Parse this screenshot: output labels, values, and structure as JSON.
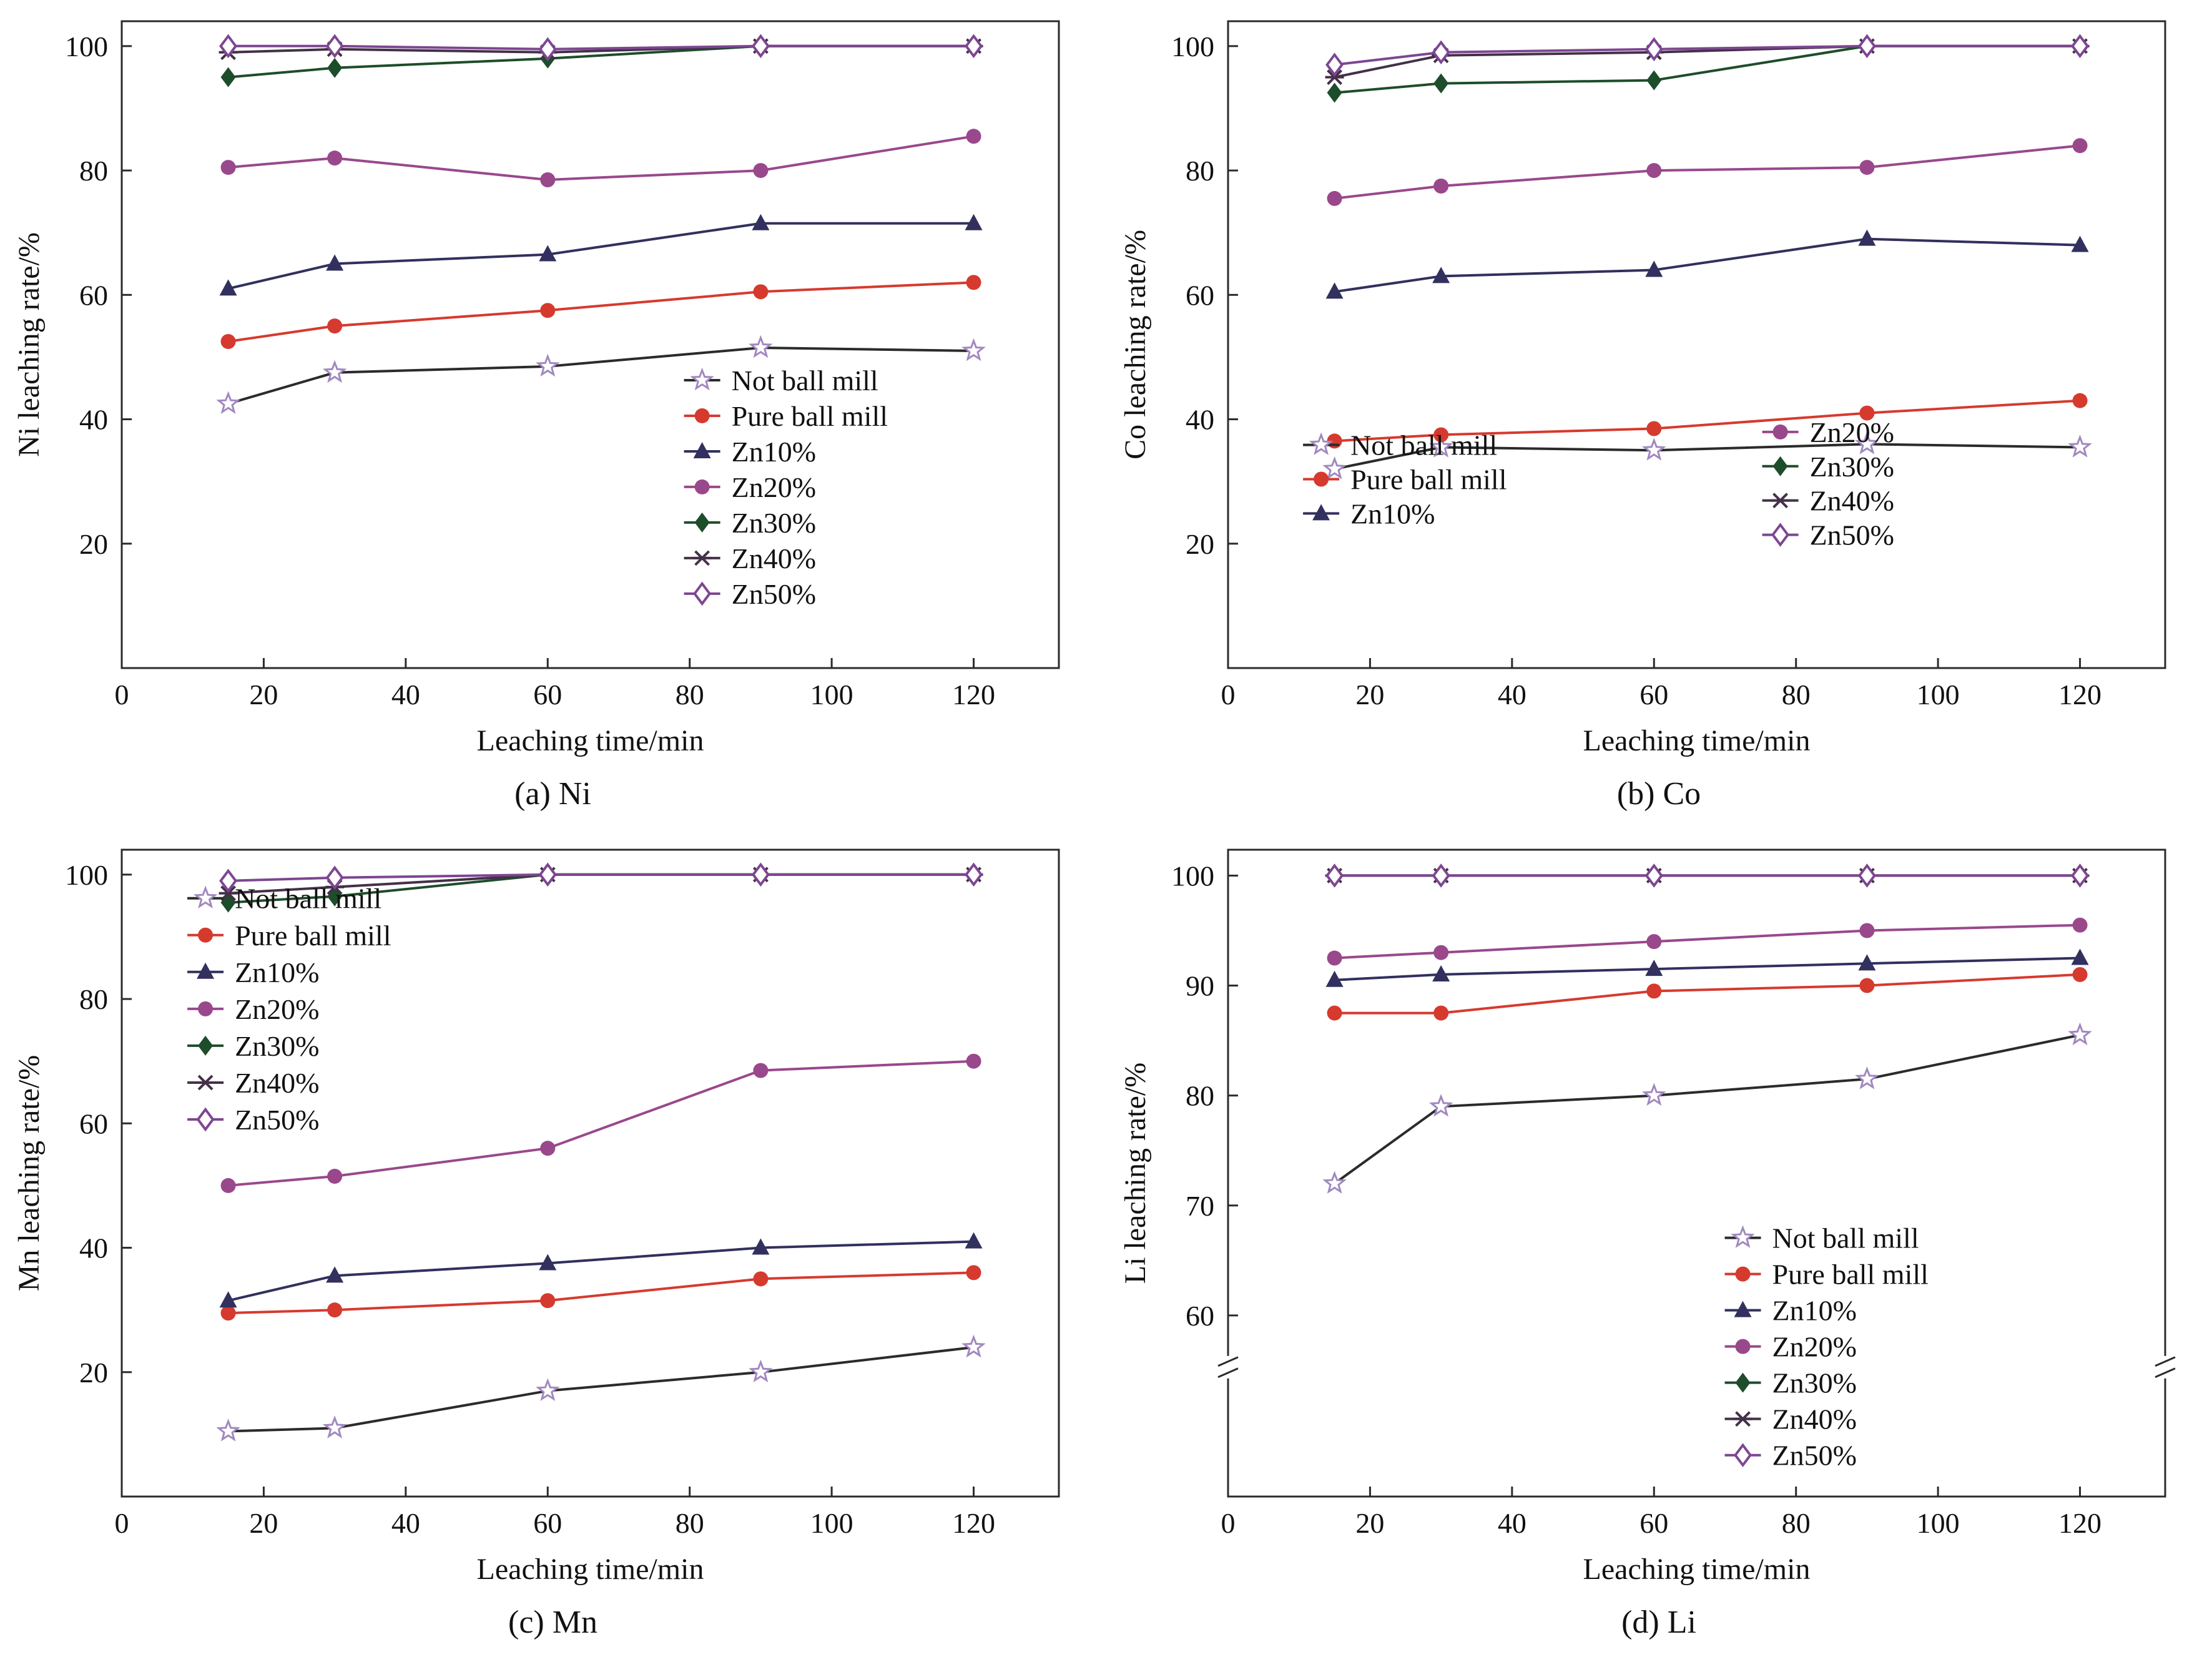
{
  "figure_title": "",
  "series_styles": {
    "Not ball mill": {
      "marker": "star",
      "color": "#a188bf",
      "line_color": "#2b2b2b"
    },
    "Pure ball mill": {
      "marker": "circle",
      "color": "#d63a2e",
      "line_color": "#d63a2e"
    },
    "Zn10%": {
      "marker": "triangle",
      "color": "#32305e",
      "line_color": "#32305e"
    },
    "Zn20%": {
      "marker": "circle",
      "color": "#99488c",
      "line_color": "#99488c"
    },
    "Zn30%": {
      "marker": "diamond",
      "color": "#1e4d2b",
      "line_color": "#1e4d2b"
    },
    "Zn40%": {
      "marker": "asterisk",
      "color": "#443048",
      "line_color": "#443048"
    },
    "Zn50%": {
      "marker": "diamond-open",
      "color": "#7d4691",
      "line_color": "#7d4691"
    }
  },
  "chart_data": [
    {
      "id": "a",
      "type": "line",
      "caption": "(a) Ni",
      "xlabel": "Leaching time/min",
      "ylabel": "Ni leaching rate/%",
      "x": [
        15,
        30,
        60,
        90,
        120
      ],
      "xlim": [
        0,
        132
      ],
      "ylim": [
        0,
        104
      ],
      "xticks": [
        0,
        20,
        40,
        60,
        80,
        100,
        120
      ],
      "yticks": [
        20,
        40,
        60,
        80,
        100
      ],
      "grid": false,
      "legend_position": "inside middle-right",
      "legend": {
        "row_h": 0.055,
        "columns": [
          {
            "x": 0.6,
            "y": 0.555,
            "items": [
              "Not ball mill",
              "Pure ball mill",
              "Zn10%",
              "Zn20%",
              "Zn30%",
              "Zn40%",
              "Zn50%"
            ]
          }
        ]
      },
      "series": [
        {
          "name": "Not ball mill",
          "values": [
            42.5,
            47.5,
            48.5,
            51.5,
            51
          ]
        },
        {
          "name": "Pure ball mill",
          "values": [
            52.5,
            55,
            57.5,
            60.5,
            62
          ]
        },
        {
          "name": "Zn10%",
          "values": [
            61,
            65,
            66.5,
            71.5,
            71.5
          ]
        },
        {
          "name": "Zn20%",
          "values": [
            80.5,
            82,
            78.5,
            80,
            85.5
          ]
        },
        {
          "name": "Zn30%",
          "values": [
            95,
            96.5,
            98,
            100,
            100
          ]
        },
        {
          "name": "Zn40%",
          "values": [
            99,
            99.5,
            99,
            100,
            100
          ]
        },
        {
          "name": "Zn50%",
          "values": [
            100,
            100,
            99.5,
            100,
            100
          ]
        }
      ]
    },
    {
      "id": "b",
      "type": "line",
      "caption": "(b) Co",
      "xlabel": "Leaching time/min",
      "ylabel": "Co leaching rate/%",
      "x": [
        15,
        30,
        60,
        90,
        120
      ],
      "xlim": [
        0,
        132
      ],
      "ylim": [
        0,
        104
      ],
      "xticks": [
        0,
        20,
        40,
        60,
        80,
        100,
        120
      ],
      "yticks": [
        20,
        40,
        60,
        80,
        100
      ],
      "grid": false,
      "legend_position": "inside bottom, two columns",
      "legend": {
        "row_h": 0.053,
        "columns": [
          {
            "x": 0.08,
            "y": 0.655,
            "items": [
              "Not ball mill",
              "Pure ball mill",
              "Zn10%"
            ]
          },
          {
            "x": 0.57,
            "y": 0.635,
            "items": [
              "Zn20%",
              "Zn30%",
              "Zn40%",
              "Zn50%"
            ]
          }
        ]
      },
      "series": [
        {
          "name": "Not ball mill",
          "values": [
            32,
            35.5,
            35,
            36,
            35.5
          ]
        },
        {
          "name": "Pure ball mill",
          "values": [
            36.5,
            37.5,
            38.5,
            41,
            43
          ]
        },
        {
          "name": "Zn10%",
          "values": [
            60.5,
            63,
            64,
            69,
            68
          ]
        },
        {
          "name": "Zn20%",
          "values": [
            75.5,
            77.5,
            80,
            80.5,
            84
          ]
        },
        {
          "name": "Zn30%",
          "values": [
            92.5,
            94,
            94.5,
            100,
            100
          ]
        },
        {
          "name": "Zn40%",
          "values": [
            95,
            98.5,
            99,
            100,
            100
          ]
        },
        {
          "name": "Zn50%",
          "values": [
            97,
            99,
            99.5,
            100,
            100
          ]
        }
      ]
    },
    {
      "id": "c",
      "type": "line",
      "caption": "(c) Mn",
      "xlabel": "Leaching time/min",
      "ylabel": "Mn leaching rate/%",
      "x": [
        15,
        30,
        60,
        90,
        120
      ],
      "xlim": [
        0,
        132
      ],
      "ylim": [
        0,
        104
      ],
      "xticks": [
        0,
        20,
        40,
        60,
        80,
        100,
        120
      ],
      "yticks": [
        20,
        40,
        60,
        80,
        100
      ],
      "grid": false,
      "legend_position": "inside top-left",
      "legend": {
        "row_h": 0.057,
        "columns": [
          {
            "x": 0.07,
            "y": 0.075,
            "items": [
              "Not ball mill",
              "Pure ball mill",
              "Zn10%",
              "Zn20%",
              "Zn30%",
              "Zn40%",
              "Zn50%"
            ]
          }
        ]
      },
      "series": [
        {
          "name": "Not ball mill",
          "values": [
            10.5,
            11,
            17,
            20,
            24
          ]
        },
        {
          "name": "Pure ball mill",
          "values": [
            29.5,
            30,
            31.5,
            35,
            36
          ]
        },
        {
          "name": "Zn10%",
          "values": [
            31.5,
            35.5,
            37.5,
            40,
            41
          ]
        },
        {
          "name": "Zn20%",
          "values": [
            50,
            51.5,
            56,
            68.5,
            70
          ]
        },
        {
          "name": "Zn30%",
          "values": [
            95.5,
            96.5,
            100,
            100,
            100
          ]
        },
        {
          "name": "Zn40%",
          "values": [
            97,
            98,
            100,
            100,
            100
          ]
        },
        {
          "name": "Zn50%",
          "values": [
            99,
            99.5,
            100,
            100,
            100
          ]
        }
      ]
    },
    {
      "id": "d",
      "type": "line",
      "caption": "(d) Li",
      "xlabel": "Leaching time/min",
      "ylabel": "Li leaching rate/%",
      "x": [
        15,
        30,
        60,
        90,
        120
      ],
      "xlim": [
        0,
        132
      ],
      "ylim": [
        60,
        100
      ],
      "ybreak": true,
      "origin_label": "0",
      "xticks": [
        0,
        20,
        40,
        60,
        80,
        100,
        120
      ],
      "yticks": [
        60,
        70,
        80,
        90,
        100
      ],
      "grid": false,
      "legend_position": "inside bottom-right",
      "legend": {
        "row_h": 0.056,
        "columns": [
          {
            "x": 0.53,
            "y": 0.6,
            "items": [
              "Not ball mill",
              "Pure ball mill",
              "Zn10%",
              "Zn20%",
              "Zn30%",
              "Zn40%",
              "Zn50%"
            ]
          }
        ]
      },
      "series": [
        {
          "name": "Not ball mill",
          "values": [
            72,
            79,
            80,
            81.5,
            85.5
          ]
        },
        {
          "name": "Pure ball mill",
          "values": [
            87.5,
            87.5,
            89.5,
            90,
            91
          ]
        },
        {
          "name": "Zn10%",
          "values": [
            90.5,
            91,
            91.5,
            92,
            92.5
          ]
        },
        {
          "name": "Zn20%",
          "values": [
            92.5,
            93,
            94,
            95,
            95.5
          ]
        },
        {
          "name": "Zn30%",
          "values": [
            100,
            100,
            100,
            100,
            100
          ]
        },
        {
          "name": "Zn40%",
          "values": [
            100,
            100,
            100,
            100,
            100
          ]
        },
        {
          "name": "Zn50%",
          "values": [
            100,
            100,
            100,
            100,
            100
          ]
        }
      ]
    }
  ]
}
